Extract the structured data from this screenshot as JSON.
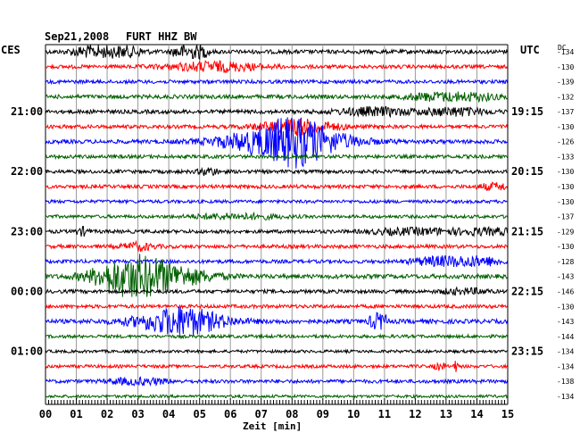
{
  "header": {
    "date": "Sep21,2008",
    "station": "FURT HHZ BW",
    "left_label": "CES",
    "right_label": "UTC",
    "dc_label": "DC"
  },
  "x_axis": {
    "label": "Zeit [min]",
    "ticks": [
      "00",
      "01",
      "02",
      "03",
      "04",
      "05",
      "06",
      "07",
      "08",
      "09",
      "10",
      "11",
      "12",
      "13",
      "14",
      "15"
    ]
  },
  "chart_data": {
    "type": "line",
    "title": "Sep21,2008   FURT HHZ BW",
    "xlabel": "Zeit [min]",
    "xlim": [
      0,
      15
    ],
    "grid": true,
    "left_time_labels": [
      {
        "row": 4,
        "text": "21:00"
      },
      {
        "row": 8,
        "text": "22:00"
      },
      {
        "row": 12,
        "text": "23:00"
      },
      {
        "row": 16,
        "text": "00:00"
      },
      {
        "row": 20,
        "text": "01:00"
      }
    ],
    "right_time_labels": [
      {
        "row": 4,
        "text": "19:15"
      },
      {
        "row": 8,
        "text": "20:15"
      },
      {
        "row": 12,
        "text": "21:15"
      },
      {
        "row": 16,
        "text": "22:15"
      },
      {
        "row": 20,
        "text": "23:15"
      }
    ],
    "traces": [
      {
        "color": "#000000",
        "dc": "134",
        "noise": 2.2,
        "events": [
          [
            2.0,
            5.5,
            1.2,
            5
          ],
          [
            4.7,
            6.5,
            0.6,
            6
          ]
        ]
      },
      {
        "color": "#ff0000",
        "dc": "130",
        "noise": 2.0,
        "events": [
          [
            5.5,
            5,
            1.5,
            2
          ]
        ]
      },
      {
        "color": "#0000ff",
        "dc": "139",
        "noise": 2.0,
        "events": []
      },
      {
        "color": "#006000",
        "dc": "132",
        "noise": 2.2,
        "events": [
          [
            13.2,
            4,
            1.5,
            4
          ]
        ]
      },
      {
        "color": "#000000",
        "dc": "137",
        "noise": 2.2,
        "events": [
          [
            10.7,
            4,
            1.2,
            2
          ],
          [
            13.3,
            4,
            1,
            2
          ]
        ]
      },
      {
        "color": "#ff0000",
        "dc": "130",
        "noise": 2.0,
        "events": [
          [
            8.2,
            8,
            1.2,
            2
          ]
        ]
      },
      {
        "color": "#0000ff",
        "dc": "126",
        "noise": 2.2,
        "events": [
          [
            8.1,
            28,
            1.3,
            1.5
          ],
          [
            6.6,
            4,
            1.5,
            2
          ]
        ]
      },
      {
        "color": "#006000",
        "dc": "133",
        "noise": 2.0,
        "events": []
      },
      {
        "color": "#000000",
        "dc": "130",
        "noise": 2.0,
        "events": [
          [
            5.3,
            4,
            0.3,
            2
          ]
        ]
      },
      {
        "color": "#ff0000",
        "dc": "130",
        "noise": 2.0,
        "events": [
          [
            14.6,
            3,
            0.6,
            3
          ]
        ]
      },
      {
        "color": "#0000ff",
        "dc": "130",
        "noise": 1.8,
        "events": []
      },
      {
        "color": "#006000",
        "dc": "137",
        "noise": 1.8,
        "events": [
          [
            6.2,
            2.5,
            1.5,
            3
          ]
        ]
      },
      {
        "color": "#000000",
        "dc": "129",
        "noise": 2.0,
        "events": [
          [
            1.2,
            4,
            0.2,
            2
          ],
          [
            12.0,
            3,
            1.5,
            3
          ],
          [
            14.4,
            3,
            1,
            3
          ]
        ]
      },
      {
        "color": "#ff0000",
        "dc": "130",
        "noise": 2.0,
        "events": [
          [
            3.0,
            4,
            0.5,
            2
          ]
        ]
      },
      {
        "color": "#0000ff",
        "dc": "128",
        "noise": 2.0,
        "events": [
          [
            13.4,
            5,
            1.5,
            4
          ]
        ]
      },
      {
        "color": "#006000",
        "dc": "143",
        "noise": 2.4,
        "events": [
          [
            2.7,
            18,
            1.2,
            2.2
          ],
          [
            4.0,
            10,
            1.4,
            2.2
          ]
        ]
      },
      {
        "color": "#000000",
        "dc": "146",
        "noise": 2.0,
        "events": [
          [
            13.6,
            2.5,
            0.8,
            4
          ]
        ]
      },
      {
        "color": "#ff0000",
        "dc": "130",
        "noise": 2.0,
        "events": []
      },
      {
        "color": "#0000ff",
        "dc": "143",
        "noise": 2.4,
        "events": [
          [
            4.4,
            16,
            1.3,
            1.8
          ],
          [
            10.8,
            8,
            0.3,
            4
          ]
        ]
      },
      {
        "color": "#006000",
        "dc": "144",
        "noise": 1.8,
        "events": []
      },
      {
        "color": "#000000",
        "dc": "134",
        "noise": 1.6,
        "events": []
      },
      {
        "color": "#ff0000",
        "dc": "134",
        "noise": 1.8,
        "events": [
          [
            13.3,
            5,
            0.1,
            6
          ],
          [
            12.8,
            3,
            0.2,
            5
          ]
        ]
      },
      {
        "color": "#0000ff",
        "dc": "138",
        "noise": 2.0,
        "events": [
          [
            3.0,
            3,
            1,
            3
          ]
        ]
      },
      {
        "color": "#006000",
        "dc": "134",
        "noise": 1.6,
        "events": []
      }
    ]
  }
}
